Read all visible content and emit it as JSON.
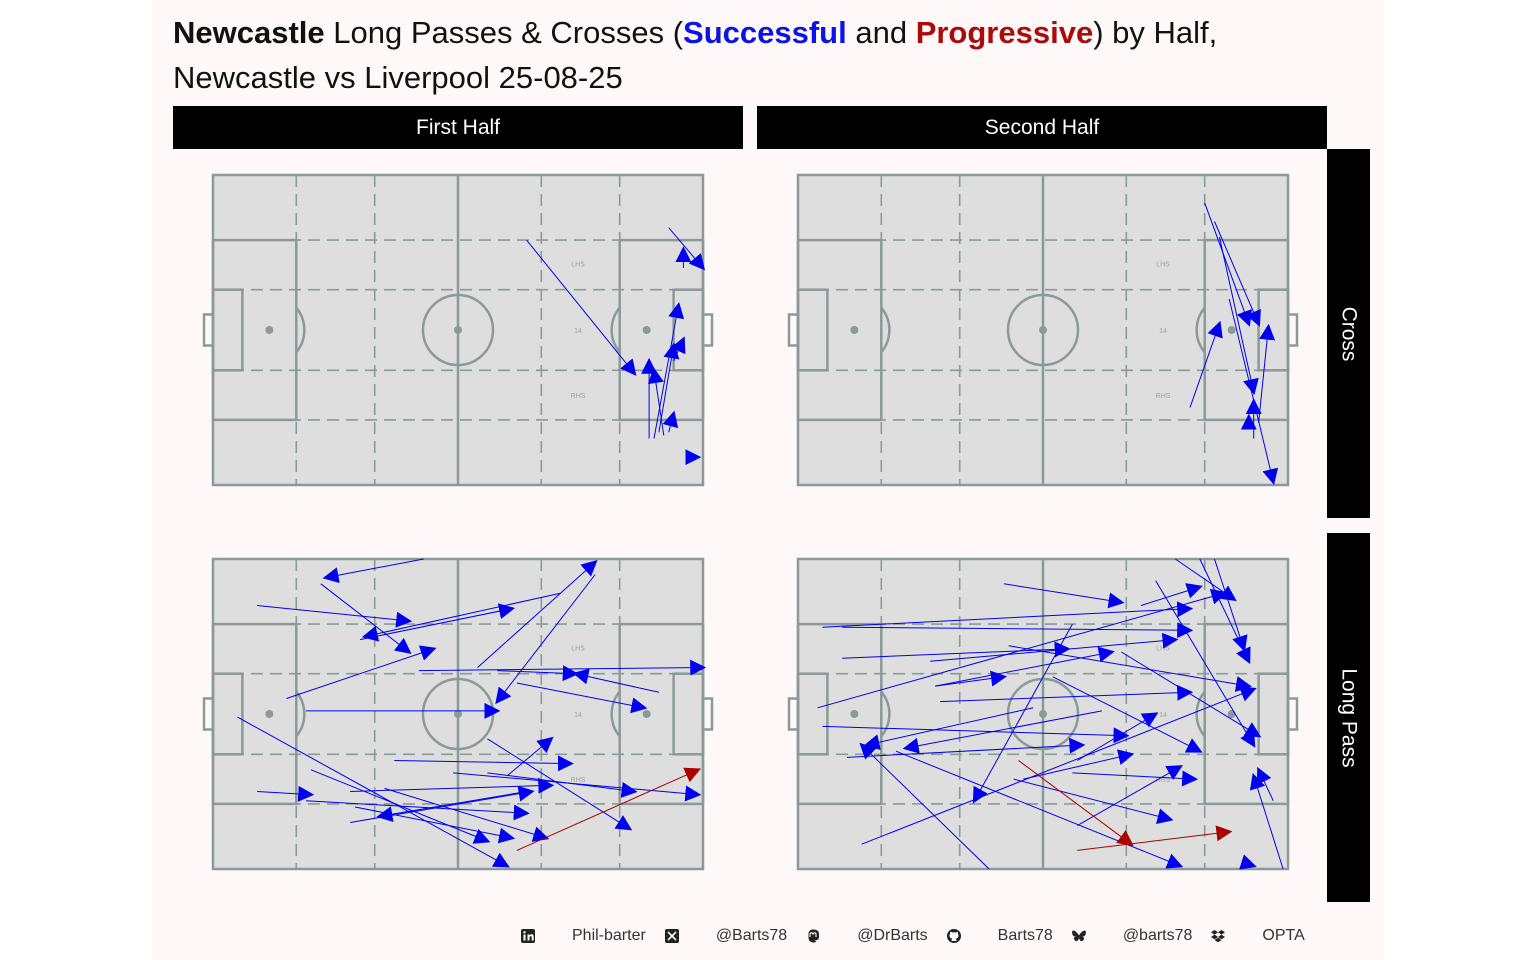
{
  "title": {
    "team": "Newcastle",
    "part1": " Long Passes & Crosses (",
    "successful": "Successful",
    "and": " and ",
    "progressive": "Progressive",
    "part2": ") by Half,",
    "line2": "Newcastle vs Liverpool 25-08-25"
  },
  "colors": {
    "successful": "#0000ee",
    "progressive": "#aa0000",
    "pitch": "#dedede",
    "lines": "#8a9a98",
    "strip": "#000000"
  },
  "facets": {
    "columns": [
      "First Half",
      "Second Half"
    ],
    "rows": [
      "Cross",
      "Long Pass"
    ]
  },
  "zone_labels": {
    "lhs": "LHS",
    "center": "14",
    "rhs": "RHS"
  },
  "footer": [
    {
      "icon": "linkedin-icon",
      "text": "Phil-barter"
    },
    {
      "icon": "x-twitter-icon",
      "text": "@Barts78"
    },
    {
      "icon": "mastodon-icon",
      "text": "@DrBarts"
    },
    {
      "icon": "github-icon",
      "text": "Barts78"
    },
    {
      "icon": "bluesky-icon",
      "text": "@barts78"
    },
    {
      "icon": "dropbox-icon",
      "text": "OPTA"
    }
  ],
  "chart_data": {
    "type": "scatter",
    "description_units": "pitch coordinates x 0-100 (left to right, attack direction), y 0-100 (bottom to top)",
    "xlim": [
      0,
      100
    ],
    "ylim": [
      0,
      100
    ],
    "panels": [
      {
        "column": "First Half",
        "row": "Cross",
        "passes": [
          {
            "x": 64,
            "y": 79,
            "endx": 86,
            "endy": 36,
            "type": "Successful"
          },
          {
            "x": 93,
            "y": 83,
            "endx": 100,
            "endy": 70,
            "type": "Successful"
          },
          {
            "x": 96,
            "y": 70,
            "endx": 96,
            "endy": 76,
            "type": "Successful"
          },
          {
            "x": 90,
            "y": 15,
            "endx": 95,
            "endy": 58,
            "type": "Successful"
          },
          {
            "x": 91,
            "y": 17,
            "endx": 94,
            "endy": 45,
            "type": "Successful"
          },
          {
            "x": 92,
            "y": 16,
            "endx": 90,
            "endy": 37,
            "type": "Successful"
          },
          {
            "x": 89,
            "y": 15,
            "endx": 89,
            "endy": 40,
            "type": "Successful"
          },
          {
            "x": 93,
            "y": 17,
            "endx": 94,
            "endy": 23,
            "type": "Successful"
          },
          {
            "x": 94,
            "y": 40,
            "endx": 96,
            "endy": 47,
            "type": "Successful"
          },
          {
            "x": 97,
            "y": 9,
            "endx": 99,
            "endy": 9,
            "type": "Successful"
          }
        ]
      },
      {
        "column": "Second Half",
        "row": "Cross",
        "passes": [
          {
            "x": 83,
            "y": 91,
            "endx": 92,
            "endy": 52,
            "type": "Successful"
          },
          {
            "x": 85,
            "y": 85,
            "endx": 94,
            "endy": 52,
            "type": "Successful"
          },
          {
            "x": 80,
            "y": 25,
            "endx": 86,
            "endy": 52,
            "type": "Successful"
          },
          {
            "x": 94,
            "y": 20,
            "endx": 96,
            "endy": 51,
            "type": "Successful"
          },
          {
            "x": 86,
            "y": 80,
            "endx": 93,
            "endy": 30,
            "type": "Successful"
          },
          {
            "x": 93,
            "y": 15,
            "endx": 93,
            "endy": 27,
            "type": "Successful"
          },
          {
            "x": 92,
            "y": 18,
            "endx": 92,
            "endy": 22,
            "type": "Successful"
          },
          {
            "x": 88,
            "y": 60,
            "endx": 97,
            "endy": 1,
            "type": "Successful"
          }
        ]
      },
      {
        "column": "First Half",
        "row": "Long Pass",
        "passes": [
          {
            "x": 43,
            "y": 100,
            "endx": 23,
            "endy": 94,
            "type": "Successful"
          },
          {
            "x": 9,
            "y": 85,
            "endx": 40,
            "endy": 80,
            "type": "Successful"
          },
          {
            "x": 22,
            "y": 92,
            "endx": 40,
            "endy": 70,
            "type": "Successful"
          },
          {
            "x": 71,
            "y": 89,
            "endx": 31,
            "endy": 75,
            "type": "Successful"
          },
          {
            "x": 30,
            "y": 74,
            "endx": 61,
            "endy": 84,
            "type": "Successful"
          },
          {
            "x": 15,
            "y": 55,
            "endx": 45,
            "endy": 71,
            "type": "Successful"
          },
          {
            "x": 54,
            "y": 65,
            "endx": 78,
            "endy": 99,
            "type": "Successful"
          },
          {
            "x": 58,
            "y": 64,
            "endx": 74,
            "endy": 63,
            "type": "Successful"
          },
          {
            "x": 19,
            "y": 51,
            "endx": 58,
            "endy": 51,
            "type": "Successful"
          },
          {
            "x": 42,
            "y": 64,
            "endx": 100,
            "endy": 65,
            "type": "Successful"
          },
          {
            "x": 78,
            "y": 95,
            "endx": 58,
            "endy": 54,
            "type": "Successful"
          },
          {
            "x": 62,
            "y": 60,
            "endx": 88,
            "endy": 52,
            "type": "Successful"
          },
          {
            "x": 5,
            "y": 49,
            "endx": 60,
            "endy": 1,
            "type": "Successful"
          },
          {
            "x": 37,
            "y": 35,
            "endx": 73,
            "endy": 34,
            "type": "Successful"
          },
          {
            "x": 60,
            "y": 30,
            "endx": 69,
            "endy": 42,
            "type": "Successful"
          },
          {
            "x": 56,
            "y": 42,
            "endx": 85,
            "endy": 13,
            "type": "Successful"
          },
          {
            "x": 56,
            "y": 31,
            "endx": 86,
            "endy": 25,
            "type": "Successful"
          },
          {
            "x": 28,
            "y": 25,
            "endx": 69,
            "endy": 27,
            "type": "Successful"
          },
          {
            "x": 9,
            "y": 25,
            "endx": 20,
            "endy": 24,
            "type": "Successful"
          },
          {
            "x": 19,
            "y": 22,
            "endx": 64,
            "endy": 18,
            "type": "Successful"
          },
          {
            "x": 28,
            "y": 15,
            "endx": 65,
            "endy": 25,
            "type": "Successful"
          },
          {
            "x": 64,
            "y": 25,
            "endx": 34,
            "endy": 17,
            "type": "Successful"
          },
          {
            "x": 49,
            "y": 31,
            "endx": 99,
            "endy": 24,
            "type": "Successful"
          },
          {
            "x": 29,
            "y": 20,
            "endx": 61,
            "endy": 10,
            "type": "Successful"
          },
          {
            "x": 20,
            "y": 32,
            "endx": 56,
            "endy": 9,
            "type": "Successful"
          },
          {
            "x": 35,
            "y": 26,
            "endx": 68,
            "endy": 10,
            "type": "Successful"
          },
          {
            "x": 91,
            "y": 57,
            "endx": 74,
            "endy": 63,
            "type": "Successful"
          },
          {
            "x": 62,
            "y": 6,
            "endx": 99,
            "endy": 32,
            "type": "Progressive"
          }
        ]
      },
      {
        "column": "Second Half",
        "row": "Long Pass",
        "passes": [
          {
            "x": 42,
            "y": 92,
            "endx": 66,
            "endy": 86,
            "type": "Successful"
          },
          {
            "x": 5,
            "y": 78,
            "endx": 80,
            "endy": 84,
            "type": "Successful"
          },
          {
            "x": 9,
            "y": 78,
            "endx": 80,
            "endy": 77,
            "type": "Successful"
          },
          {
            "x": 9,
            "y": 68,
            "endx": 55,
            "endy": 71,
            "type": "Successful"
          },
          {
            "x": 27,
            "y": 67,
            "endx": 77,
            "endy": 74,
            "type": "Successful"
          },
          {
            "x": 4,
            "y": 52,
            "endx": 87,
            "endy": 89,
            "type": "Successful"
          },
          {
            "x": 28,
            "y": 59,
            "endx": 64,
            "endy": 70,
            "type": "Successful"
          },
          {
            "x": 29,
            "y": 54,
            "endx": 80,
            "endy": 57,
            "type": "Successful"
          },
          {
            "x": 28,
            "y": 59,
            "endx": 42,
            "endy": 62,
            "type": "Successful"
          },
          {
            "x": 43,
            "y": 72,
            "endx": 92,
            "endy": 59,
            "type": "Successful"
          },
          {
            "x": 5,
            "y": 46,
            "endx": 67,
            "endy": 43,
            "type": "Successful"
          },
          {
            "x": 10,
            "y": 36,
            "endx": 58,
            "endy": 40,
            "type": "Successful"
          },
          {
            "x": 48,
            "y": 52,
            "endx": 14,
            "endy": 40,
            "type": "Successful"
          },
          {
            "x": 62,
            "y": 51,
            "endx": 22,
            "endy": 39,
            "type": "Successful"
          },
          {
            "x": 56,
            "y": 79,
            "endx": 36,
            "endy": 22,
            "type": "Successful"
          },
          {
            "x": 70,
            "y": 85,
            "endx": 82,
            "endy": 91,
            "type": "Successful"
          },
          {
            "x": 66,
            "y": 70,
            "endx": 94,
            "endy": 43,
            "type": "Successful"
          },
          {
            "x": 77,
            "y": 100,
            "endx": 89,
            "endy": 87,
            "type": "Successful"
          },
          {
            "x": 82,
            "y": 100,
            "endx": 92,
            "endy": 67,
            "type": "Successful"
          },
          {
            "x": 85,
            "y": 100,
            "endx": 91,
            "endy": 71,
            "type": "Successful"
          },
          {
            "x": 73,
            "y": 93,
            "endx": 93,
            "endy": 40,
            "type": "Successful"
          },
          {
            "x": 56,
            "y": 31,
            "endx": 81,
            "endy": 29,
            "type": "Successful"
          },
          {
            "x": 46,
            "y": 29,
            "endx": 68,
            "endy": 37,
            "type": "Successful"
          },
          {
            "x": 57,
            "y": 14,
            "endx": 78,
            "endy": 33,
            "type": "Successful"
          },
          {
            "x": 13,
            "y": 8,
            "endx": 93,
            "endy": 58,
            "type": "Successful"
          },
          {
            "x": 20,
            "y": 38,
            "endx": 78,
            "endy": 1,
            "type": "Successful"
          },
          {
            "x": 39,
            "y": 0,
            "endx": 13,
            "endy": 40,
            "type": "Successful"
          },
          {
            "x": 99,
            "y": 0,
            "endx": 93,
            "endy": 30,
            "type": "Successful"
          },
          {
            "x": 97,
            "y": 22,
            "endx": 94,
            "endy": 32,
            "type": "Successful"
          },
          {
            "x": 91,
            "y": 2,
            "endx": 93,
            "endy": 1,
            "type": "Successful"
          },
          {
            "x": 44,
            "y": 29,
            "endx": 76,
            "endy": 16,
            "type": "Successful"
          },
          {
            "x": 57,
            "y": 35,
            "endx": 73,
            "endy": 50,
            "type": "Successful"
          },
          {
            "x": 52,
            "y": 62,
            "endx": 82,
            "endy": 38,
            "type": "Successful"
          },
          {
            "x": 45,
            "y": 35,
            "endx": 68,
            "endy": 8,
            "type": "Progressive"
          },
          {
            "x": 57,
            "y": 6,
            "endx": 88,
            "endy": 12,
            "type": "Progressive"
          }
        ]
      }
    ]
  }
}
